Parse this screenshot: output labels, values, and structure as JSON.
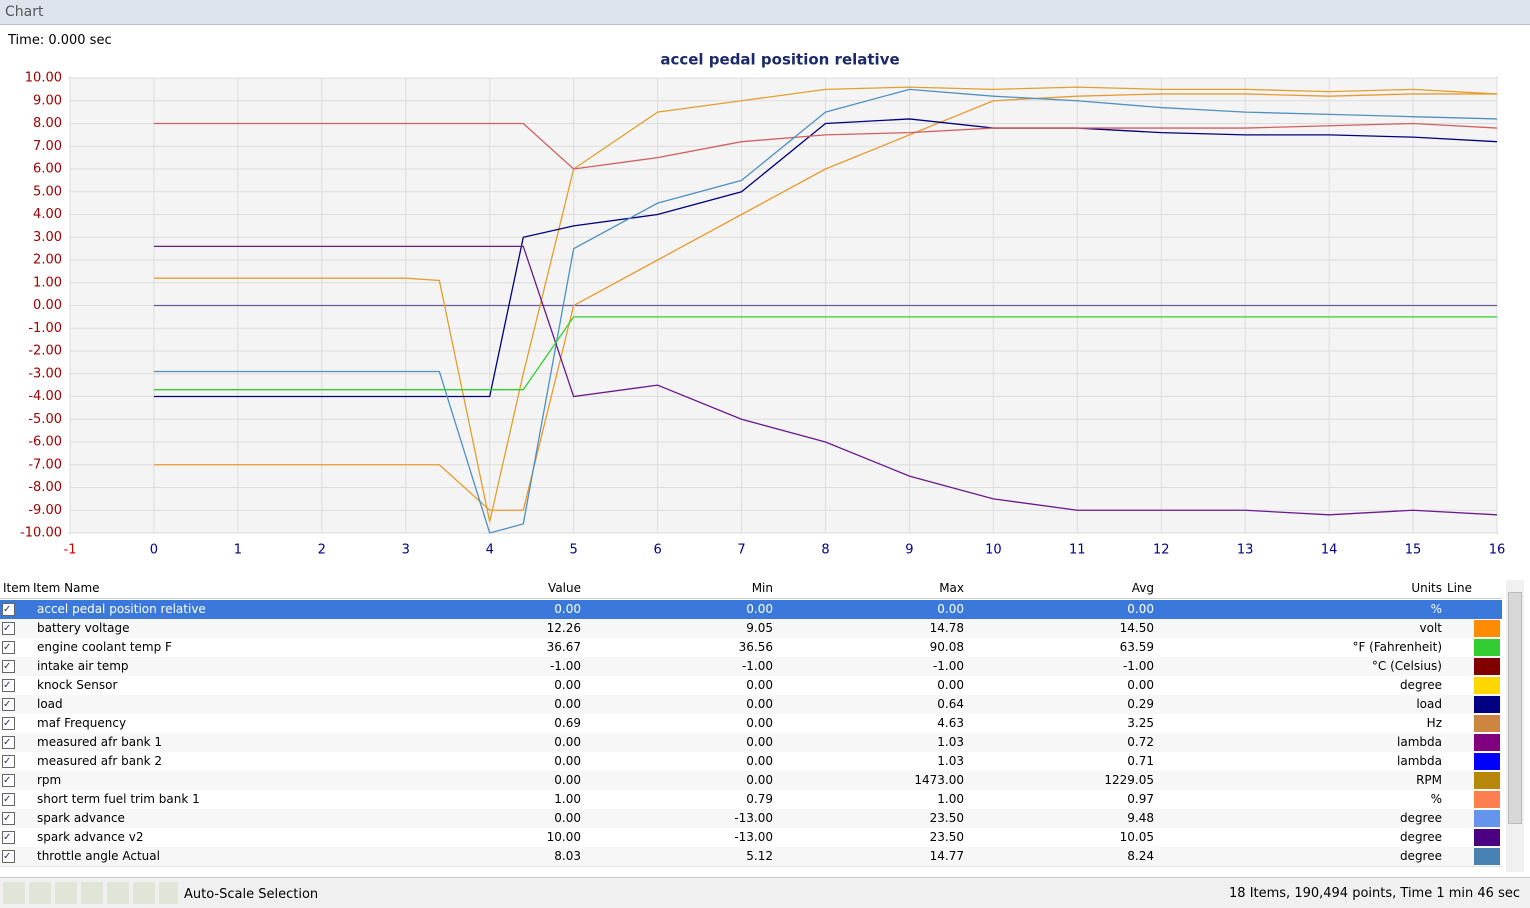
{
  "window": {
    "title": "Chart"
  },
  "time_label": "Time: 0.000 sec",
  "chart_data": {
    "type": "line",
    "title": "accel pedal position relative",
    "xlim": [
      -1,
      16
    ],
    "xticks": [
      -1,
      0,
      1,
      2,
      3,
      4,
      5,
      6,
      7,
      8,
      9,
      10,
      11,
      12,
      13,
      14,
      15,
      16
    ],
    "ylim": [
      -10,
      10
    ],
    "yticks": [
      {
        "value": -10,
        "label": "-10.00"
      },
      {
        "value": -9,
        "label": "-9.00"
      },
      {
        "value": -8,
        "label": "-8.00"
      },
      {
        "value": -7,
        "label": "-7.00"
      },
      {
        "value": -6,
        "label": "-6.00"
      },
      {
        "value": -5,
        "label": "-5.00"
      },
      {
        "value": -4,
        "label": "-4.00"
      },
      {
        "value": -3,
        "label": "-3.00"
      },
      {
        "value": -2,
        "label": "-2.00"
      },
      {
        "value": -1,
        "label": "-1.00"
      },
      {
        "value": 0,
        "label": "0.00"
      },
      {
        "value": 1,
        "label": "1.00"
      },
      {
        "value": 2,
        "label": "2.00"
      },
      {
        "value": 3,
        "label": "3.00"
      },
      {
        "value": 4,
        "label": "4.00"
      },
      {
        "value": 5,
        "label": "5.00"
      },
      {
        "value": 6,
        "label": "6.00"
      },
      {
        "value": 7,
        "label": "7.00"
      },
      {
        "value": 8,
        "label": "8.00"
      },
      {
        "value": 9,
        "label": "9.00"
      },
      {
        "value": 10,
        "label": "10.00"
      }
    ],
    "grid": true,
    "x": [
      0,
      1,
      2,
      3,
      3.4,
      4,
      4.4,
      5,
      6,
      7,
      8,
      9,
      10,
      11,
      12,
      13,
      14,
      15,
      16
    ],
    "series": [
      {
        "color": "#6a5a9a",
        "values": [
          0,
          0,
          0,
          0,
          0,
          0,
          0,
          0,
          0,
          0,
          0,
          0,
          0,
          0,
          0,
          0,
          0,
          0,
          0
        ]
      },
      {
        "color": "#e0a030",
        "values": [
          1.2,
          1.2,
          1.2,
          1.2,
          1.1,
          -9.5,
          -3,
          6,
          8.5,
          9,
          9.5,
          9.6,
          9.5,
          9.6,
          9.5,
          9.5,
          9.4,
          9.5,
          9.3
        ]
      },
      {
        "color": "#e89a30",
        "values": [
          -7,
          -7,
          -7,
          -7,
          -7,
          -9,
          -9,
          0,
          2,
          4,
          6,
          7.5,
          9,
          9.2,
          9.3,
          9.3,
          9.2,
          9.3,
          9.3
        ]
      },
      {
        "color": "#00007a",
        "values": [
          -4,
          -4,
          -4,
          -4,
          -4,
          -4,
          3,
          3.5,
          4,
          5,
          8,
          8.2,
          7.8,
          7.8,
          7.6,
          7.5,
          7.5,
          7.4,
          7.2
        ]
      },
      {
        "color": "#d06060",
        "values": [
          8,
          8,
          8,
          8,
          8,
          8,
          8,
          6,
          6.5,
          7.2,
          7.5,
          7.6,
          7.8,
          7.8,
          7.8,
          7.8,
          7.9,
          8,
          7.8
        ]
      },
      {
        "color": "#5090c0",
        "values": [
          -2.9,
          -2.9,
          -2.9,
          -2.9,
          -2.9,
          -10,
          -9.6,
          2.5,
          4.5,
          5.5,
          8.5,
          9.5,
          9.2,
          9,
          8.7,
          8.5,
          8.4,
          8.3,
          8.2
        ]
      },
      {
        "color": "#6a1a8a",
        "values": [
          2.6,
          2.6,
          2.6,
          2.6,
          2.6,
          2.6,
          2.6,
          -4,
          -3.5,
          -5,
          -6,
          -7.5,
          -8.5,
          -9,
          -9,
          -9,
          -9.2,
          -9,
          -9.2
        ]
      },
      {
        "color": "#30d030",
        "values": [
          -3.7,
          -3.7,
          -3.7,
          -3.7,
          -3.7,
          -3.7,
          -3.7,
          -0.5,
          -0.5,
          -0.5,
          -0.5,
          -0.5,
          -0.5,
          -0.5,
          -0.5,
          -0.5,
          -0.5,
          -0.5,
          -0.5
        ]
      }
    ]
  },
  "table": {
    "header": [
      "Item Name",
      "Value",
      "Min",
      "Max",
      "Avg",
      "Units",
      "Line"
    ],
    "rows": [
      {
        "name": "accel pedal position relative",
        "value": "0.00",
        "min": "0.00",
        "max": "0.00",
        "avg": "0.00",
        "units": "%",
        "color": "#3a78dc"
      },
      {
        "name": "battery voltage",
        "value": "12.26",
        "min": "9.05",
        "max": "14.78",
        "avg": "14.50",
        "units": "volt",
        "color": "#ff8c00"
      },
      {
        "name": "engine coolant temp F",
        "value": "36.67",
        "min": "36.56",
        "max": "90.08",
        "avg": "63.59",
        "units": "°F (Fahrenheit)",
        "color": "#33cc33"
      },
      {
        "name": "intake air temp",
        "value": "-1.00",
        "min": "-1.00",
        "max": "-1.00",
        "avg": "-1.00",
        "units": "°C (Celsius)",
        "color": "#800000"
      },
      {
        "name": "knock Sensor",
        "value": "0.00",
        "min": "0.00",
        "max": "0.00",
        "avg": "0.00",
        "units": "degree",
        "color": "#ffd700"
      },
      {
        "name": "load",
        "value": "0.00",
        "min": "0.00",
        "max": "0.64",
        "avg": "0.29",
        "units": "load",
        "color": "#000080"
      },
      {
        "name": "maf Frequency",
        "value": "0.69",
        "min": "0.00",
        "max": "4.63",
        "avg": "3.25",
        "units": "Hz",
        "color": "#cd853f"
      },
      {
        "name": "measured afr bank 1",
        "value": "0.00",
        "min": "0.00",
        "max": "1.03",
        "avg": "0.72",
        "units": "lambda",
        "color": "#800080"
      },
      {
        "name": "measured afr bank 2",
        "value": "0.00",
        "min": "0.00",
        "max": "1.03",
        "avg": "0.71",
        "units": "lambda",
        "color": "#0000ff"
      },
      {
        "name": "rpm",
        "value": "0.00",
        "min": "0.00",
        "max": "1473.00",
        "avg": "1229.05",
        "units": "RPM",
        "color": "#b8860b"
      },
      {
        "name": "short term fuel trim bank 1",
        "value": "1.00",
        "min": "0.79",
        "max": "1.00",
        "avg": "0.97",
        "units": "%",
        "color": "#ff7f50"
      },
      {
        "name": "spark advance",
        "value": "0.00",
        "min": "-13.00",
        "max": "23.50",
        "avg": "9.48",
        "units": "degree",
        "color": "#6495ed"
      },
      {
        "name": "spark advance v2",
        "value": "10.00",
        "min": "-13.00",
        "max": "23.50",
        "avg": "10.05",
        "units": "degree",
        "color": "#4b0082"
      },
      {
        "name": "throttle angle Actual",
        "value": "8.03",
        "min": "5.12",
        "max": "14.77",
        "avg": "8.24",
        "units": "degree",
        "color": "#4682b4"
      }
    ]
  },
  "status": {
    "button": "Auto-Scale Selection",
    "summary": "18 Items, 190,494 points, Time 1 min 46 sec"
  }
}
